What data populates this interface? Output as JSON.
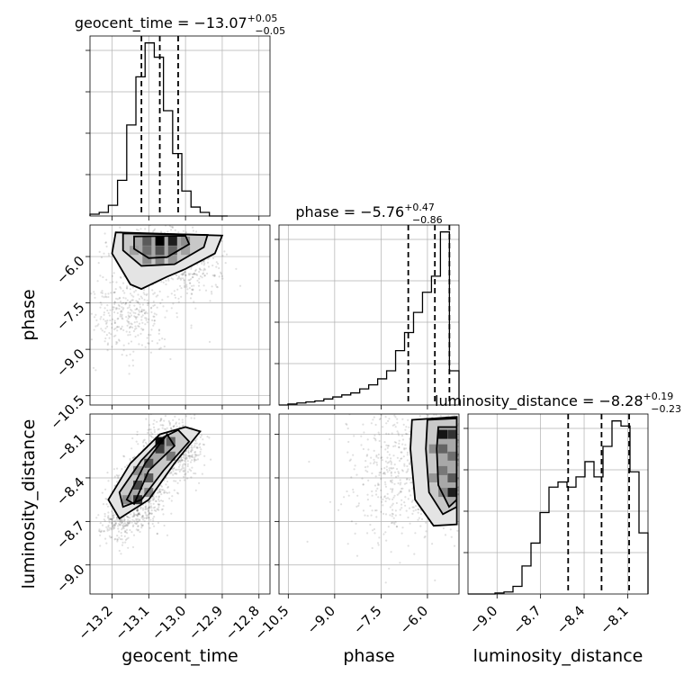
{
  "chart_data": {
    "type": "corner",
    "parameters": [
      {
        "name": "geocent_time",
        "label": "geocent_time",
        "title_main": "geocent_time = −13.07",
        "title_sup": "+0.05",
        "title_sub": "−0.05",
        "median": -13.07,
        "err_plus": 0.05,
        "err_minus": 0.05,
        "range": [
          -13.26,
          -12.77
        ],
        "ticks": [
          -13.2,
          -13.1,
          -13.0,
          -12.9,
          -12.8
        ],
        "tick_labels": [
          "−13.2",
          "−13.1",
          "−13.0",
          "−12.9",
          "−12.8"
        ],
        "hist_bins": [
          -13.26,
          -13.235,
          -13.21,
          -13.185,
          -13.16,
          -13.135,
          -13.11,
          -13.085,
          -13.06,
          -13.035,
          -13.01,
          -12.985,
          -12.96,
          -12.935,
          -12.91,
          -12.885
        ],
        "hist_values": [
          1,
          2,
          6,
          20,
          51,
          78,
          97,
          89,
          59,
          35,
          14,
          5,
          2,
          0,
          0
        ]
      },
      {
        "name": "phase",
        "label": "phase",
        "title_main": "phase = −5.76",
        "title_sup": "+0.47",
        "title_sub": "−0.86",
        "median": -5.76,
        "err_plus": 0.47,
        "err_minus": 0.86,
        "range": [
          -10.8,
          -4.98
        ],
        "ticks": [
          -10.5,
          -9.0,
          -7.5,
          -6.0
        ],
        "tick_labels": [
          "−10.5",
          "−9.0",
          "−7.5",
          "−6.0"
        ],
        "hist_bins": [
          -10.8,
          -10.51,
          -10.22,
          -9.93,
          -9.64,
          -9.35,
          -9.06,
          -8.77,
          -8.48,
          -8.19,
          -7.9,
          -7.61,
          -7.32,
          -7.03,
          -6.74,
          -6.45,
          -6.16,
          -5.87,
          -5.58,
          -5.29,
          -4.98
        ],
        "hist_values": [
          0,
          0.5,
          1,
          1.5,
          2,
          3,
          4,
          5,
          6,
          8,
          10,
          13,
          17,
          27,
          36,
          46,
          56,
          64,
          86,
          17
        ]
      },
      {
        "name": "luminosity_distance",
        "label": "luminosity_distance",
        "title_main": "luminosity_distance = −8.28",
        "title_sup": "+0.19",
        "title_sub": "−0.23",
        "median": -8.28,
        "err_plus": 0.19,
        "err_minus": 0.23,
        "range": [
          -9.2,
          -7.96
        ],
        "ticks": [
          -9.0,
          -8.7,
          -8.4,
          -8.1
        ],
        "tick_labels": [
          "−9.0",
          "−8.7",
          "−8.4",
          "−8.1"
        ],
        "hist_bins": [
          -9.2,
          -9.138,
          -9.076,
          -9.014,
          -8.952,
          -8.89,
          -8.828,
          -8.766,
          -8.704,
          -8.642,
          -8.58,
          -8.518,
          -8.456,
          -8.394,
          -8.332,
          -8.27,
          -8.208,
          -8.146,
          -8.084,
          -8.022,
          -7.96
        ],
        "hist_values": [
          0,
          0,
          0,
          0.2,
          0.4,
          1.5,
          5.5,
          10,
          16,
          21,
          22,
          21,
          23,
          26,
          23,
          29,
          34,
          33,
          24,
          12
        ]
      }
    ],
    "quantile_lines": {
      "geocent_time": [
        -13.12,
        -13.07,
        -13.02
      ],
      "phase": [
        -6.62,
        -5.76,
        -5.29
      ],
      "luminosity_distance": [
        -8.51,
        -8.28,
        -8.09
      ]
    },
    "pairs": [
      {
        "x": "geocent_time",
        "y": "phase",
        "cloud": [
          {
            "x": -13.07,
            "y": -5.9,
            "sx": 0.05,
            "sy": 0.4,
            "w": 0.6
          },
          {
            "x": -13.15,
            "y": -7.8,
            "sx": 0.06,
            "sy": 0.7,
            "w": 0.25
          },
          {
            "x": -12.98,
            "y": -6.4,
            "sx": 0.05,
            "sy": 0.5,
            "w": 0.15
          }
        ],
        "cells": [
          {
            "x": -13.07,
            "y": -5.5,
            "v": 1.0
          },
          {
            "x": -13.035,
            "y": -5.5,
            "v": 0.85
          },
          {
            "x": -13.105,
            "y": -5.5,
            "v": 0.55
          },
          {
            "x": -13.07,
            "y": -5.8,
            "v": 0.6
          },
          {
            "x": -13.035,
            "y": -5.8,
            "v": 0.5
          },
          {
            "x": -13.105,
            "y": -5.8,
            "v": 0.45
          },
          {
            "x": -13.07,
            "y": -6.1,
            "v": 0.35
          },
          {
            "x": -13.105,
            "y": -6.1,
            "v": 0.3
          },
          {
            "x": -13.035,
            "y": -6.1,
            "v": 0.25
          },
          {
            "x": -13.14,
            "y": -5.8,
            "v": 0.2
          },
          {
            "x": -13.0,
            "y": -5.5,
            "v": 0.3
          },
          {
            "x": -13.0,
            "y": -5.8,
            "v": 0.2
          }
        ],
        "contours": [
          [
            [
              -13.14,
              -5.35
            ],
            [
              -13.0,
              -5.33
            ],
            [
              -12.99,
              -5.6
            ],
            [
              -13.05,
              -6.02
            ],
            [
              -13.1,
              -6.05
            ],
            [
              -13.14,
              -5.75
            ]
          ],
          [
            [
              -13.17,
              -5.25
            ],
            [
              -12.94,
              -5.3
            ],
            [
              -12.95,
              -5.7
            ],
            [
              -13.03,
              -6.25
            ],
            [
              -13.12,
              -6.3
            ],
            [
              -13.17,
              -5.8
            ]
          ],
          [
            [
              -13.19,
              -5.22
            ],
            [
              -12.9,
              -5.32
            ],
            [
              -12.92,
              -5.9
            ],
            [
              -13.0,
              -6.4
            ],
            [
              -13.05,
              -6.65
            ],
            [
              -13.12,
              -7.05
            ],
            [
              -13.15,
              -6.9
            ],
            [
              -13.2,
              -5.9
            ]
          ]
        ]
      },
      {
        "x": "geocent_time",
        "y": "luminosity_distance",
        "cloud": [
          {
            "x": -13.12,
            "y": -8.5,
            "sx": 0.035,
            "sy": 0.12,
            "w": 0.45
          },
          {
            "x": -13.03,
            "y": -8.2,
            "sx": 0.04,
            "sy": 0.1,
            "w": 0.4
          },
          {
            "x": -13.18,
            "y": -8.7,
            "sx": 0.03,
            "sy": 0.08,
            "w": 0.15
          }
        ],
        "cells": [
          {
            "x": -13.07,
            "y": -8.15,
            "v": 0.95
          },
          {
            "x": -13.07,
            "y": -8.2,
            "v": 0.7
          },
          {
            "x": -13.1,
            "y": -8.3,
            "v": 0.6
          },
          {
            "x": -13.1,
            "y": -8.4,
            "v": 0.55
          },
          {
            "x": -13.13,
            "y": -8.45,
            "v": 0.65
          },
          {
            "x": -13.13,
            "y": -8.55,
            "v": 0.75
          },
          {
            "x": -13.04,
            "y": -8.15,
            "v": 0.5
          },
          {
            "x": -13.04,
            "y": -8.25,
            "v": 0.4
          },
          {
            "x": -13.13,
            "y": -8.35,
            "v": 0.3
          },
          {
            "x": -13.1,
            "y": -8.5,
            "v": 0.35
          },
          {
            "x": -13.16,
            "y": -8.55,
            "v": 0.3
          }
        ],
        "contours": [
          [
            [
              -13.05,
              -8.1
            ],
            [
              -13.03,
              -8.18
            ],
            [
              -13.1,
              -8.35
            ],
            [
              -13.14,
              -8.58
            ],
            [
              -13.16,
              -8.55
            ],
            [
              -13.11,
              -8.3
            ]
          ],
          [
            [
              -13.02,
              -8.07
            ],
            [
              -12.99,
              -8.15
            ],
            [
              -13.06,
              -8.35
            ],
            [
              -13.12,
              -8.55
            ],
            [
              -13.17,
              -8.6
            ],
            [
              -13.18,
              -8.5
            ],
            [
              -13.12,
              -8.28
            ],
            [
              -13.06,
              -8.12
            ]
          ],
          [
            [
              -13.0,
              -8.05
            ],
            [
              -12.96,
              -8.08
            ],
            [
              -13.03,
              -8.3
            ],
            [
              -13.1,
              -8.55
            ],
            [
              -13.18,
              -8.68
            ],
            [
              -13.21,
              -8.55
            ],
            [
              -13.15,
              -8.3
            ],
            [
              -13.07,
              -8.1
            ]
          ]
        ]
      },
      {
        "x": "phase",
        "y": "luminosity_distance",
        "cloud": [
          {
            "x": -5.6,
            "y": -8.3,
            "sx": 0.35,
            "sy": 0.17,
            "w": 0.65
          },
          {
            "x": -7.0,
            "y": -8.35,
            "sx": 0.9,
            "sy": 0.25,
            "w": 0.35
          }
        ],
        "cells": [
          {
            "x": -5.5,
            "y": -8.1,
            "v": 0.9
          },
          {
            "x": -5.2,
            "y": -8.1,
            "v": 0.75
          },
          {
            "x": -5.5,
            "y": -8.2,
            "v": 0.5
          },
          {
            "x": -5.2,
            "y": -8.25,
            "v": 0.45
          },
          {
            "x": -5.5,
            "y": -8.35,
            "v": 0.4
          },
          {
            "x": -5.2,
            "y": -8.4,
            "v": 0.55
          },
          {
            "x": -5.2,
            "y": -8.5,
            "v": 0.85
          },
          {
            "x": -5.8,
            "y": -8.2,
            "v": 0.3
          },
          {
            "x": -5.8,
            "y": -8.4,
            "v": 0.25
          },
          {
            "x": -5.5,
            "y": -8.5,
            "v": 0.35
          }
        ],
        "contours": [
          [
            [
              -5.65,
              -8.05
            ],
            [
              -5.05,
              -8.05
            ],
            [
              -5.05,
              -8.55
            ],
            [
              -5.3,
              -8.6
            ],
            [
              -5.65,
              -8.45
            ],
            [
              -5.7,
              -8.2
            ]
          ],
          [
            [
              -6.0,
              -8.0
            ],
            [
              -5.05,
              -7.99
            ],
            [
              -5.05,
              -8.6
            ],
            [
              -5.5,
              -8.65
            ],
            [
              -5.95,
              -8.5
            ],
            [
              -6.05,
              -8.2
            ]
          ],
          [
            [
              -6.5,
              -8.0
            ],
            [
              -5.05,
              -7.98
            ],
            [
              -5.05,
              -8.72
            ],
            [
              -5.8,
              -8.73
            ],
            [
              -6.4,
              -8.55
            ],
            [
              -6.55,
              -8.2
            ]
          ]
        ]
      }
    ]
  }
}
